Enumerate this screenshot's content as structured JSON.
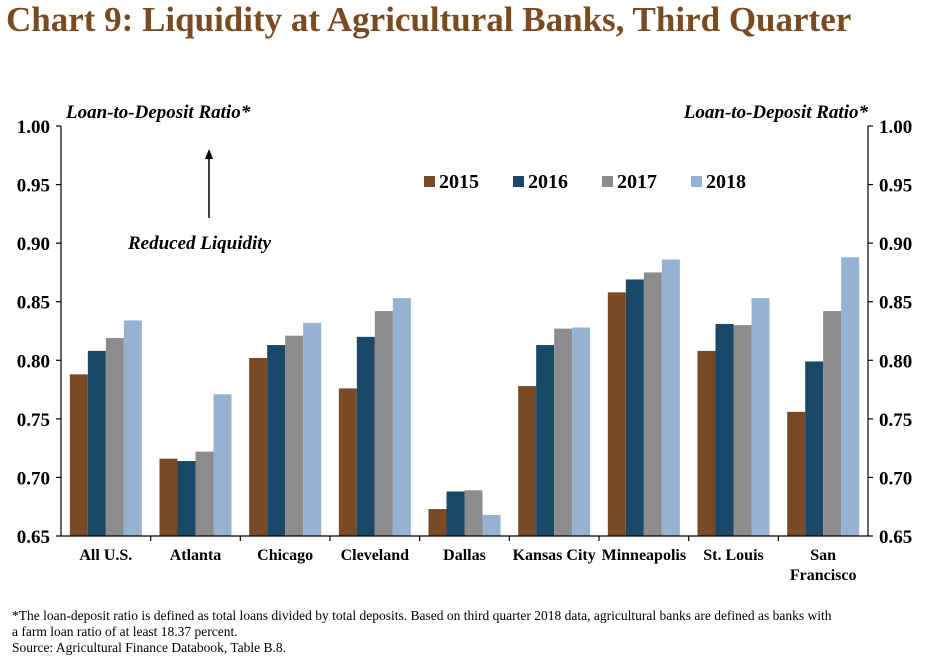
{
  "title": "Chart 9: Liquidity at Agricultural Banks, Third Quarter",
  "footnote": {
    "line1": "*The loan-deposit ratio is defined as total loans divided by total deposits.  Based on third quarter 2018 data, agricultural banks are defined as banks with",
    "line2": "a farm loan ratio of at least 18.37 percent.",
    "source": "Source: Agricultural Finance Databook, Table B.8."
  },
  "chart_data": {
    "type": "bar",
    "ylabel_left": "Loan-to-Deposit Ratio*",
    "ylabel_right": "Loan-to-Deposit Ratio*",
    "annotation": "Reduced Liquidity",
    "ylim": [
      0.65,
      1.0
    ],
    "yticks": [
      "0.65",
      "0.70",
      "0.75",
      "0.80",
      "0.85",
      "0.90",
      "0.95",
      "1.00"
    ],
    "legend_position": "top-center",
    "categories": [
      "All U.S.",
      "Atlanta",
      "Chicago",
      "Cleveland",
      "Dallas",
      "Kansas City",
      "Minneapolis",
      "St. Louis",
      "San Francisco"
    ],
    "series": [
      {
        "name": "2015",
        "color": "#7a4a24",
        "values": [
          0.788,
          0.716,
          0.802,
          0.776,
          0.673,
          0.778,
          0.858,
          0.808,
          0.756
        ]
      },
      {
        "name": "2016",
        "color": "#1a4868",
        "values": [
          0.808,
          0.714,
          0.813,
          0.82,
          0.688,
          0.813,
          0.869,
          0.831,
          0.799
        ]
      },
      {
        "name": "2017",
        "color": "#8c8c8c",
        "values": [
          0.819,
          0.722,
          0.821,
          0.842,
          0.689,
          0.827,
          0.875,
          0.83,
          0.842
        ]
      },
      {
        "name": "2018",
        "color": "#95b2d2",
        "values": [
          0.834,
          0.771,
          0.832,
          0.853,
          0.668,
          0.828,
          0.886,
          0.853,
          0.888
        ]
      }
    ]
  }
}
